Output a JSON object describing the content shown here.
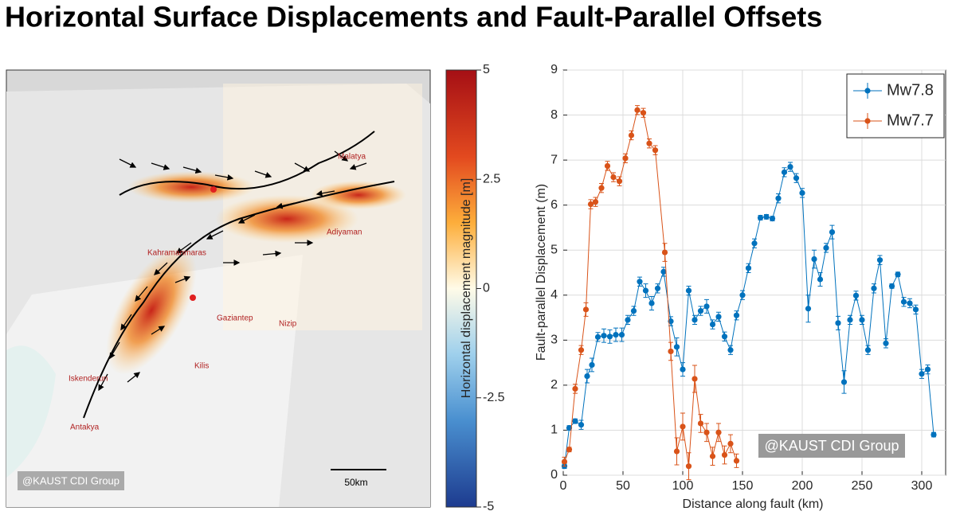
{
  "title": "Horizontal Surface Displacements and Fault-Parallel Offsets",
  "chart_data": [
    {
      "type": "map",
      "clabel": "Horizontal displacement magnitude [m]",
      "clim": [
        -5,
        5
      ],
      "cticks": [
        5,
        2.5,
        0,
        -2.5,
        -5
      ],
      "cities": [
        "Malatya",
        "Adiyaman",
        "Kahramanmaras",
        "Gaziantep",
        "Nizip",
        "Kilis",
        "Iskenderun",
        "Antakya"
      ],
      "watermark": "@KAUST CDI Group",
      "scale_label": "50km"
    },
    {
      "type": "line",
      "xlabel": "Distance along fault (km)",
      "ylabel": "Fault-parallel Displacement (m)",
      "xlim": [
        0,
        320
      ],
      "ylim": [
        0,
        9
      ],
      "xticks": [
        0,
        50,
        100,
        150,
        200,
        250,
        300
      ],
      "yticks": [
        0,
        1,
        2,
        3,
        4,
        5,
        6,
        7,
        8,
        9
      ],
      "grid": true,
      "legend": "northeast",
      "watermark": "@KAUST CDI Group",
      "series": [
        {
          "name": "Mw7.8",
          "color": "#0072bd",
          "x": [
            1,
            5,
            10,
            15,
            20,
            24,
            29,
            34,
            39,
            44,
            49,
            54,
            59,
            64,
            69,
            74,
            79,
            84,
            90,
            95,
            100,
            105,
            110,
            115,
            120,
            125,
            130,
            135,
            140,
            145,
            150,
            155,
            160,
            165,
            170,
            175,
            180,
            185,
            190,
            195,
            200,
            205,
            210,
            215,
            220,
            225,
            230,
            235,
            240,
            245,
            250,
            255,
            260,
            265,
            270,
            275,
            280,
            285,
            290,
            295,
            300,
            305,
            310
          ],
          "values": [
            0.2,
            1.05,
            1.2,
            1.12,
            2.2,
            2.45,
            3.07,
            3.1,
            3.08,
            3.12,
            3.12,
            3.45,
            3.65,
            4.3,
            4.1,
            3.82,
            4.15,
            4.52,
            3.42,
            2.85,
            2.35,
            4.1,
            3.45,
            3.65,
            3.75,
            3.35,
            3.52,
            3.08,
            2.78,
            3.55,
            4.0,
            4.6,
            5.15,
            5.72,
            5.74,
            5.7,
            6.15,
            6.73,
            6.85,
            6.6,
            6.27,
            3.7,
            4.8,
            4.35,
            5.05,
            5.4,
            3.38,
            2.07,
            3.45,
            3.99,
            3.45,
            2.78,
            4.15,
            4.78,
            2.93,
            4.2,
            4.46,
            3.85,
            3.82,
            3.68,
            2.25,
            2.35,
            0.9
          ],
          "errors": [
            0.05,
            0.05,
            0.05,
            0.1,
            0.15,
            0.15,
            0.1,
            0.15,
            0.15,
            0.15,
            0.15,
            0.1,
            0.1,
            0.1,
            0.15,
            0.15,
            0.1,
            0.1,
            0.1,
            0.2,
            0.15,
            0.1,
            0.1,
            0.1,
            0.15,
            0.1,
            0.1,
            0.1,
            0.1,
            0.1,
            0.1,
            0.1,
            0.1,
            0.05,
            0.05,
            0.05,
            0.1,
            0.1,
            0.1,
            0.1,
            0.1,
            0.3,
            0.2,
            0.15,
            0.1,
            0.15,
            0.15,
            0.25,
            0.1,
            0.1,
            0.1,
            0.1,
            0.1,
            0.1,
            0.1,
            0.05,
            0.05,
            0.1,
            0.1,
            0.1,
            0.1,
            0.1,
            0.05
          ]
        },
        {
          "name": "Mw7.7",
          "color": "#d95319",
          "x": [
            1,
            5,
            10,
            15,
            19,
            23,
            27,
            32,
            37,
            42,
            47,
            52,
            57,
            62,
            67,
            72,
            77,
            85,
            90,
            95,
            100,
            105,
            110,
            115,
            120,
            125,
            130,
            135,
            140,
            145
          ],
          "values": [
            0.3,
            0.57,
            1.92,
            2.78,
            3.68,
            6.02,
            6.07,
            6.38,
            6.87,
            6.62,
            6.53,
            7.04,
            7.55,
            8.11,
            8.05,
            7.37,
            7.22,
            4.95,
            2.75,
            0.53,
            1.08,
            0.2,
            2.14,
            1.15,
            0.95,
            0.42,
            0.95,
            0.45,
            0.7,
            0.32
          ],
          "errors": [
            0.1,
            0.05,
            0.1,
            0.1,
            0.15,
            0.1,
            0.1,
            0.1,
            0.1,
            0.1,
            0.1,
            0.1,
            0.1,
            0.1,
            0.1,
            0.1,
            0.1,
            0.2,
            0.2,
            0.3,
            0.3,
            0.3,
            0.3,
            0.2,
            0.2,
            0.2,
            0.2,
            0.2,
            0.2,
            0.15
          ]
        }
      ]
    }
  ]
}
